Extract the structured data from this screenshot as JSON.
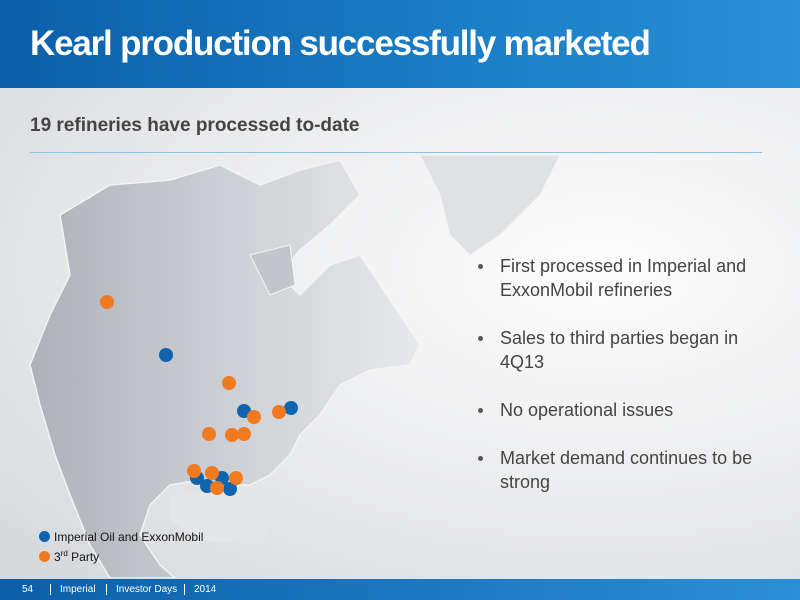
{
  "header": {
    "title": "Kearl production successfully marketed"
  },
  "subtitle": "19 refineries have processed to-date",
  "bullets": [
    "First processed in Imperial and ExxonMobil refineries",
    "Sales to third parties began in 4Q13",
    "No operational issues",
    "Market demand continues to be strong"
  ],
  "legend": [
    {
      "label": "Imperial Oil and ExxonMobil"
    },
    {
      "number": "3",
      "suffix": "rd",
      "rest": " Party"
    }
  ],
  "footer": {
    "page": "54",
    "company": "Imperial",
    "event": "Investor Days",
    "year": "2014"
  }
}
